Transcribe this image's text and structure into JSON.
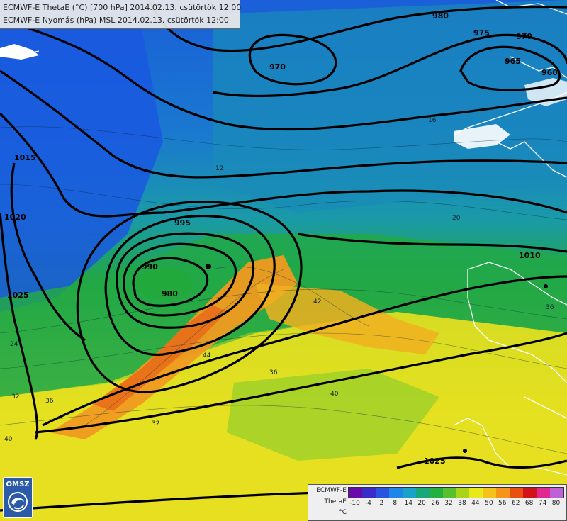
{
  "header": {
    "line1": "ECMWF-E ThetaE (°C) [700 hPa] 2014.02.13. csütörtök 12:00",
    "line2": "ECMWF-E Nyomás (hPa) MSL 2014.02.13. csütörtök 12:00"
  },
  "logo": {
    "text": "OMSZ",
    "icon": "omsz-swirl-logo"
  },
  "legend": {
    "model": "ECMWF-E",
    "field": "ThetaE",
    "unit": "°C",
    "ticks": [
      "-10",
      "-4",
      "2",
      "8",
      "14",
      "20",
      "26",
      "32",
      "38",
      "44",
      "50",
      "56",
      "62",
      "68",
      "74",
      "80"
    ],
    "colors": [
      "#6a0aa8",
      "#3a2cc8",
      "#2a54e0",
      "#1e86e8",
      "#18a4c8",
      "#16a878",
      "#22b040",
      "#58c02a",
      "#a8d41a",
      "#e8e81a",
      "#f4c21a",
      "#f49418",
      "#e85012",
      "#d41018",
      "#e02890",
      "#c060d8"
    ]
  },
  "isobar_labels": [
    "980",
    "975",
    "970",
    "965",
    "960",
    "970",
    "1015",
    "1020",
    "1025",
    "995",
    "990",
    "980",
    "1010",
    "1025"
  ],
  "thetae_labels": [
    "12",
    "16",
    "20",
    "24",
    "32",
    "36",
    "40",
    "42",
    "44",
    "36",
    "40",
    "36",
    "32"
  ],
  "colors": {
    "cold": "#1a5fd8",
    "cool": "#1a9aa8",
    "mild": "#22a83a",
    "warm": "#e8e020",
    "hot": "#f0a020",
    "coast": "#ffffff",
    "isobar": "#000000"
  }
}
